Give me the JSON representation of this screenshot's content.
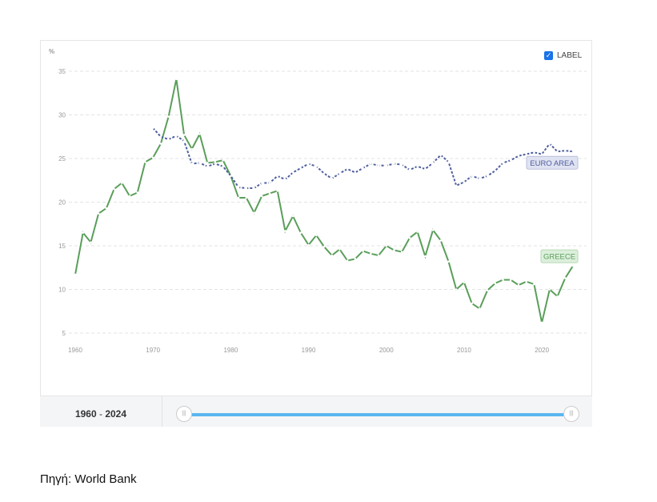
{
  "chart_data": {
    "type": "line",
    "ylabel": "%",
    "ylim": [
      5,
      35
    ],
    "yticks": [
      "5",
      "10",
      "15",
      "20",
      "25",
      "30",
      "35"
    ],
    "xlim": [
      1960,
      2024
    ],
    "xticks": [
      "1960",
      "1970",
      "1980",
      "1990",
      "2000",
      "2010",
      "2020"
    ],
    "grid": true,
    "series": [
      {
        "name": "GREECE",
        "color": "#5a9e5a",
        "start": 1960,
        "values": [
          11.7,
          16.5,
          15.4,
          18.7,
          19.3,
          21.5,
          22.2,
          20.7,
          21.1,
          24.6,
          25.1,
          26.7,
          29.8,
          34.1,
          27.7,
          26.1,
          27.8,
          24.5,
          24.6,
          24.8,
          23.0,
          20.5,
          20.5,
          18.8,
          20.7,
          21.0,
          21.3,
          16.7,
          18.4,
          16.5,
          15.1,
          16.2,
          14.9,
          13.9,
          14.6,
          13.3,
          13.5,
          14.4,
          14.1,
          13.9,
          15.0,
          14.5,
          14.3,
          15.9,
          16.6,
          13.8,
          16.8,
          15.6,
          13.2,
          10.0,
          10.8,
          8.4,
          7.8,
          9.9,
          10.7,
          11.1,
          11.1,
          10.5,
          10.9,
          10.6,
          6.2,
          10.0,
          9.2,
          11.3,
          12.7
        ]
      },
      {
        "name": "EURO AREA",
        "color": "#4f5f9e",
        "start": 1970,
        "values": [
          28.5,
          27.5,
          27.2,
          27.6,
          27.0,
          24.4,
          24.5,
          24.1,
          24.4,
          24.1,
          23.0,
          21.7,
          21.6,
          21.6,
          22.2,
          22.2,
          23.0,
          22.6,
          23.4,
          23.9,
          24.4,
          24.1,
          23.3,
          22.7,
          23.3,
          23.8,
          23.4,
          23.9,
          24.4,
          24.2,
          24.2,
          24.4,
          24.3,
          23.7,
          24.1,
          23.8,
          24.5,
          25.4,
          24.6,
          21.9,
          22.3,
          23.0,
          22.7,
          23.0,
          23.6,
          24.5,
          24.8,
          25.3,
          25.5,
          25.7,
          25.5,
          26.7,
          25.8,
          25.9,
          25.8
        ]
      }
    ]
  },
  "legend_toggle": {
    "label": "LABEL",
    "checked": true
  },
  "range": {
    "from": "1960",
    "sep": " - ",
    "to": "2024"
  },
  "caption": "Πηγή: World Bank"
}
